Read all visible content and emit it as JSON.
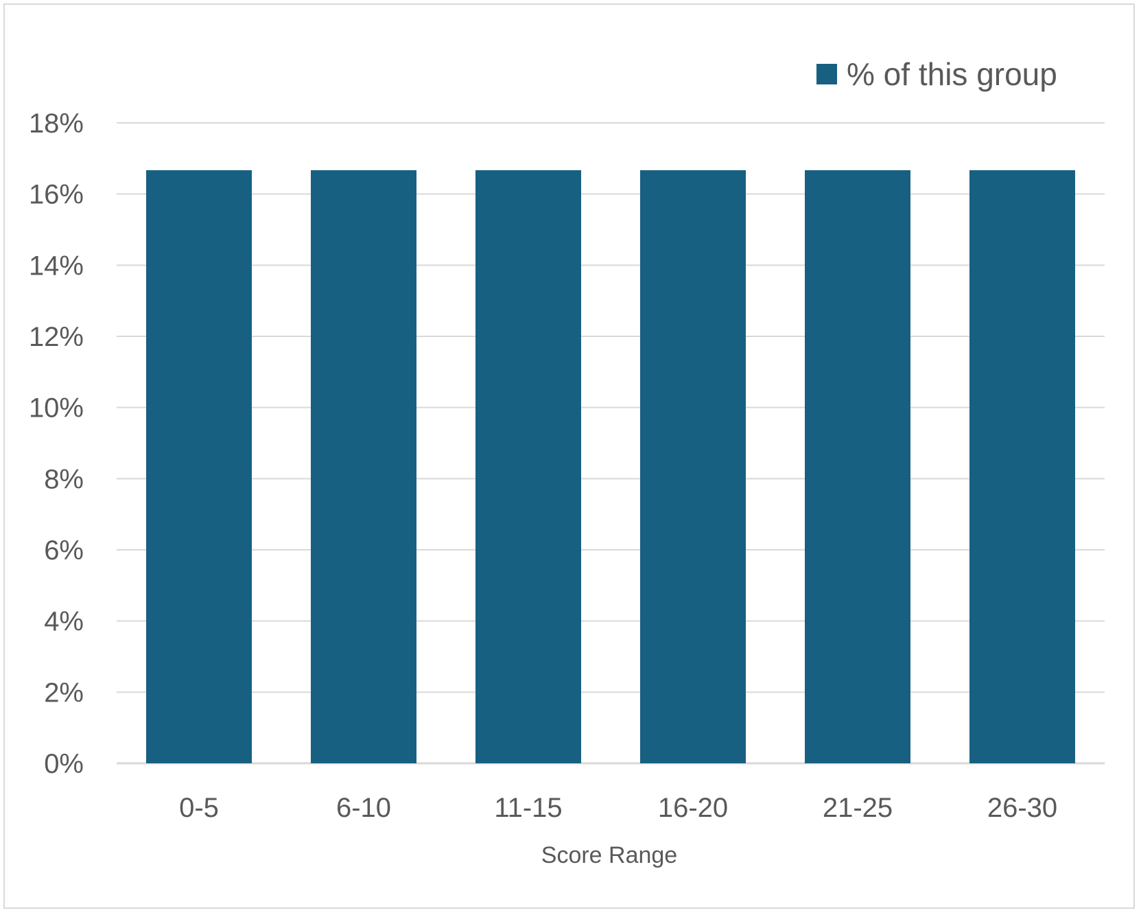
{
  "chart_data": {
    "type": "bar",
    "categories": [
      "0-5",
      "6-10",
      "11-15",
      "16-20",
      "21-25",
      "26-30"
    ],
    "series": [
      {
        "name": "% of this group",
        "values": [
          16.67,
          16.67,
          16.67,
          16.67,
          16.67,
          16.67
        ]
      }
    ],
    "title": "",
    "xlabel": "Score Range",
    "ylabel": "",
    "ylim": [
      0,
      18
    ],
    "yticks": [
      "0%",
      "2%",
      "4%",
      "6%",
      "8%",
      "10%",
      "12%",
      "14%",
      "16%",
      "18%"
    ],
    "grid": true,
    "legend_position": "top-right",
    "colors": {
      "bar": "#176082",
      "grid": "#d9d9d9",
      "text": "#595959"
    }
  }
}
